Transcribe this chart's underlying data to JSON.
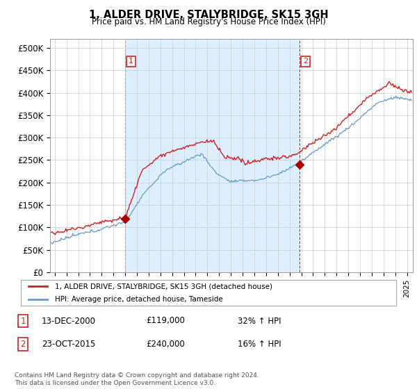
{
  "title": "1, ALDER DRIVE, STALYBRIDGE, SK15 3GH",
  "subtitle": "Price paid vs. HM Land Registry's House Price Index (HPI)",
  "ylabel_ticks": [
    "£0",
    "£50K",
    "£100K",
    "£150K",
    "£200K",
    "£250K",
    "£300K",
    "£350K",
    "£400K",
    "£450K",
    "£500K"
  ],
  "ytick_values": [
    0,
    50000,
    100000,
    150000,
    200000,
    250000,
    300000,
    350000,
    400000,
    450000,
    500000
  ],
  "ylim": [
    0,
    520000
  ],
  "xlim_start": 1994.6,
  "xlim_end": 2025.5,
  "red_line_color": "#cc2222",
  "blue_line_color": "#6699cc",
  "shade_color": "#ddeeff",
  "marker_color": "#aa0000",
  "vline1_color": "#aaaaaa",
  "vline2_color": "#cc2222",
  "annotation_box_color": "#cc2222",
  "legend_label_red": "1, ALDER DRIVE, STALYBRIDGE, SK15 3GH (detached house)",
  "legend_label_blue": "HPI: Average price, detached house, Tameside",
  "sale1_label": "1",
  "sale1_date": "13-DEC-2000",
  "sale1_price": "£119,000",
  "sale1_hpi": "32% ↑ HPI",
  "sale1_year": 2001.0,
  "sale1_price_val": 119000,
  "sale2_label": "2",
  "sale2_date": "23-OCT-2015",
  "sale2_price": "£240,000",
  "sale2_hpi": "16% ↑ HPI",
  "sale2_year": 2015.83,
  "sale2_price_val": 240000,
  "footer": "Contains HM Land Registry data © Crown copyright and database right 2024.\nThis data is licensed under the Open Government Licence v3.0.",
  "background_color": "#ffffff",
  "grid_color": "#cccccc"
}
